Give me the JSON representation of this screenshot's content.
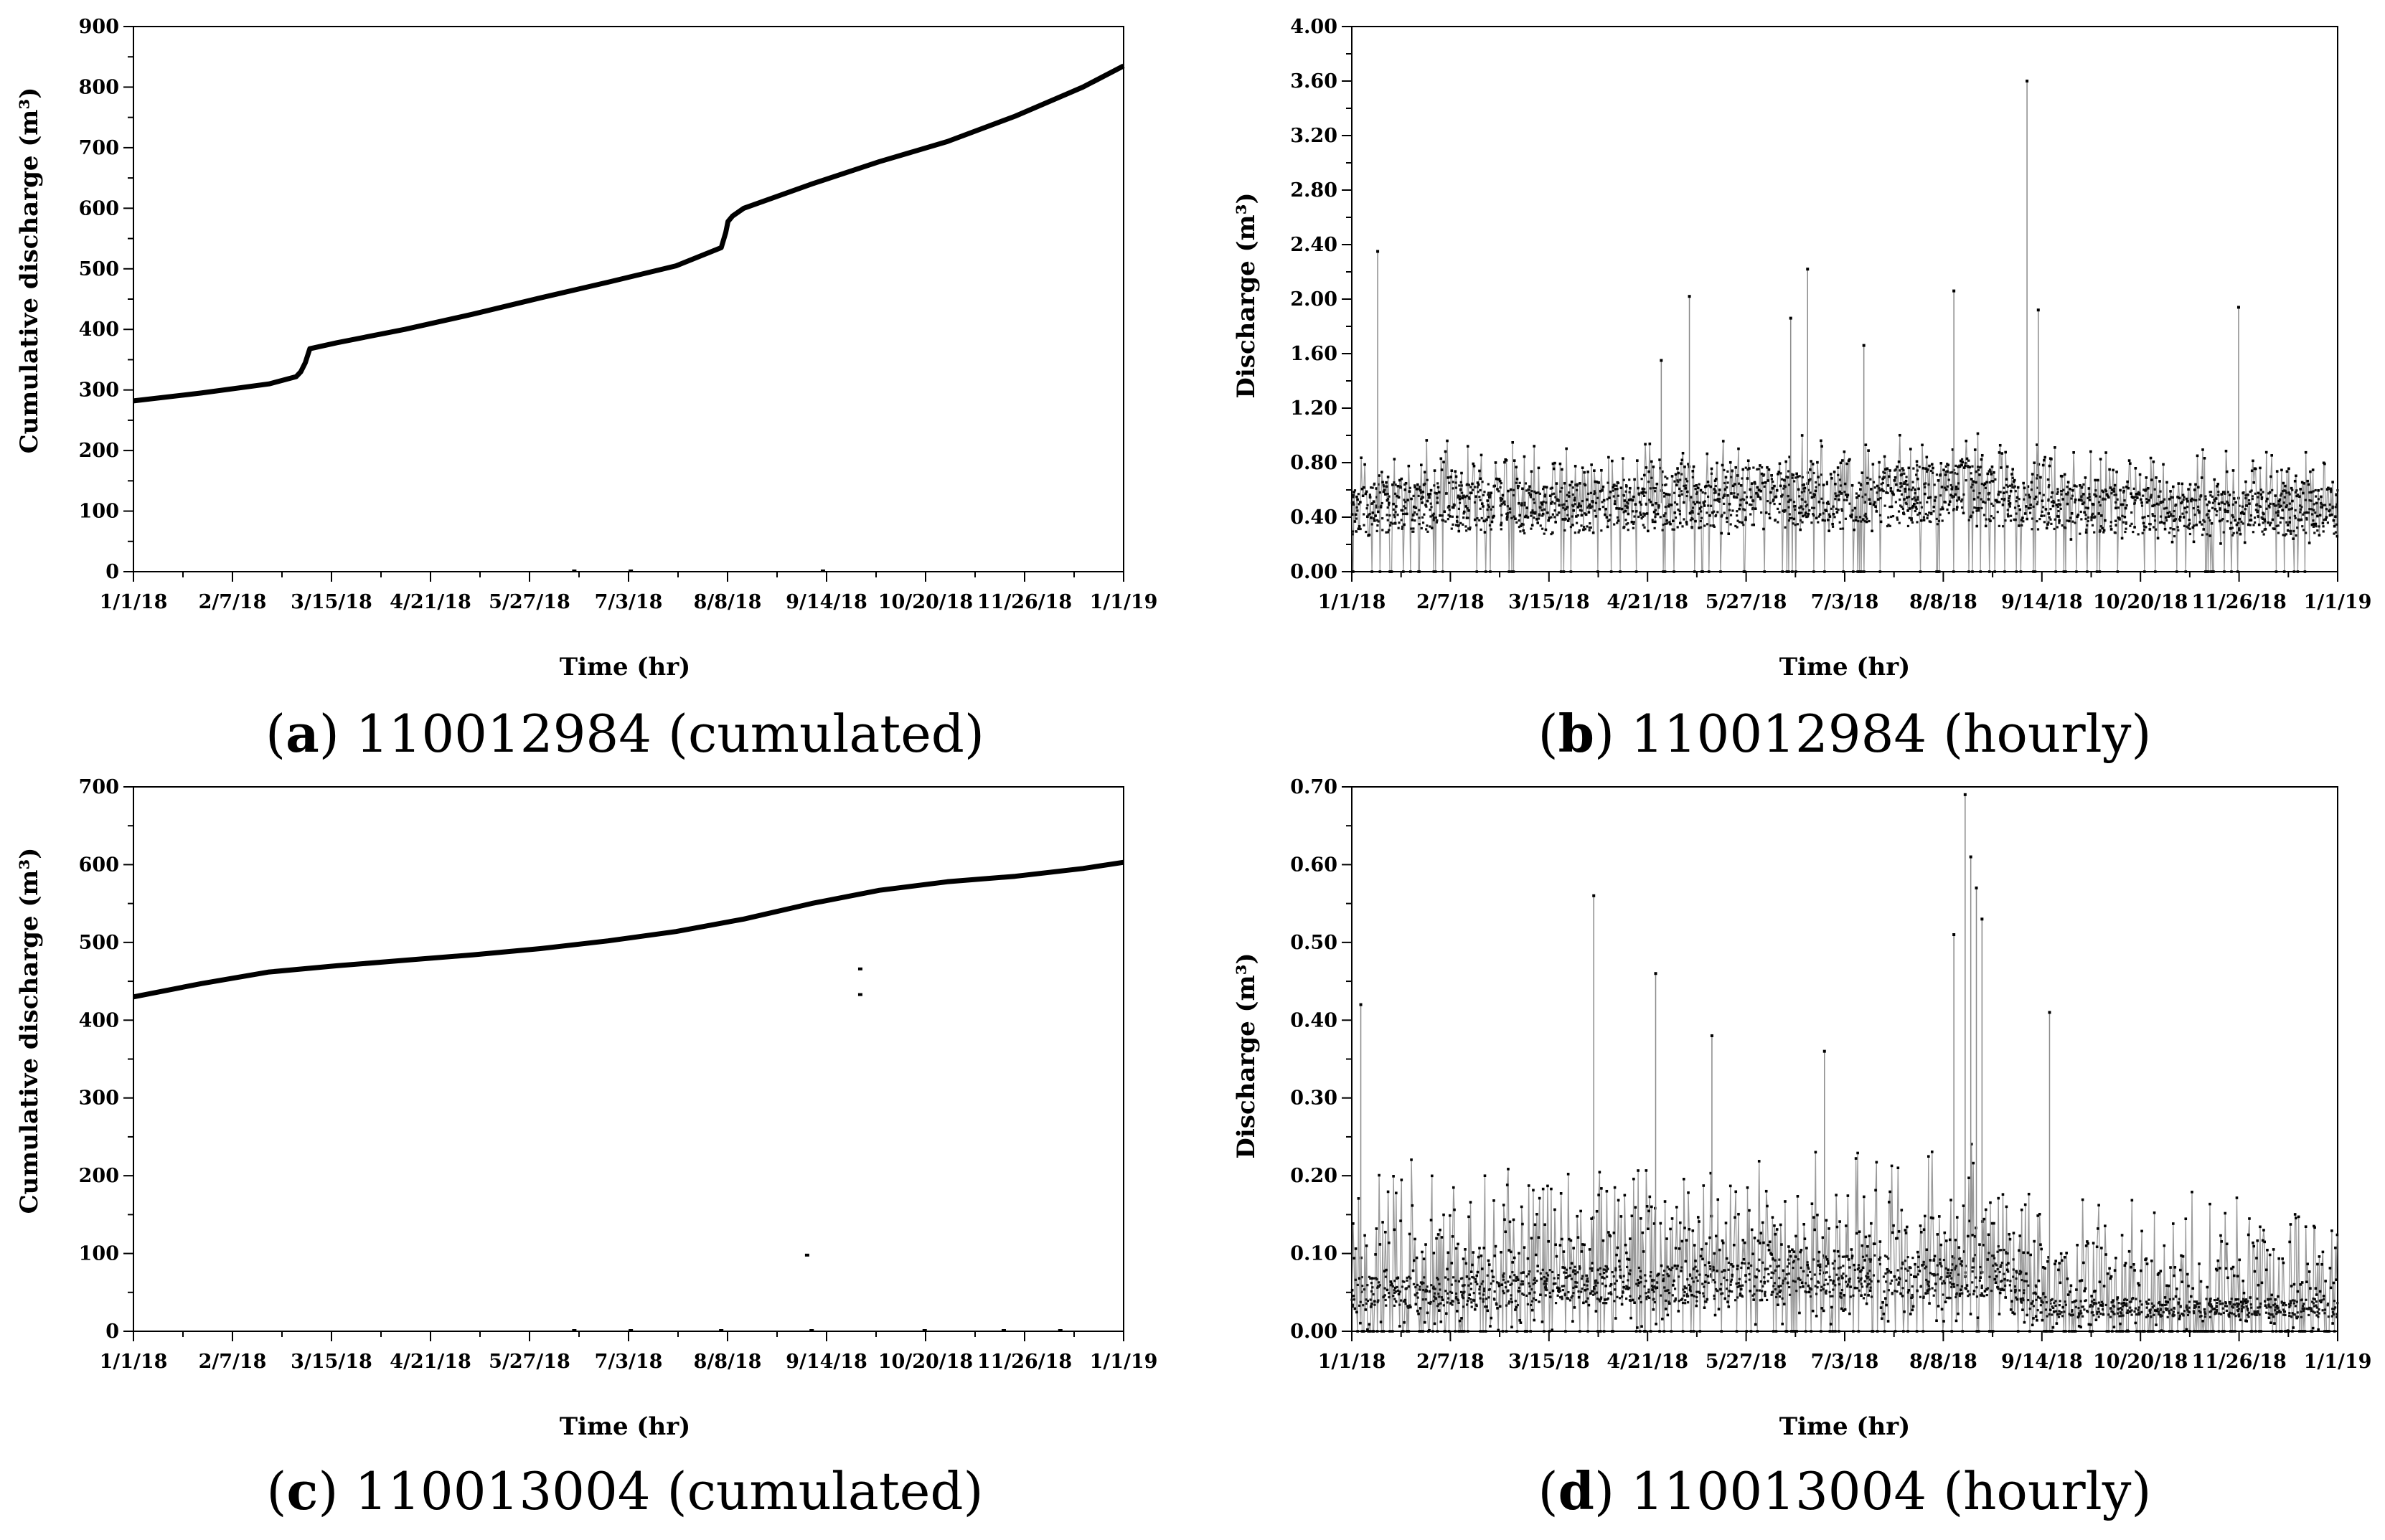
{
  "chart_data": [
    {
      "id": "a",
      "type": "scatter",
      "caption_letter": "a",
      "caption_text": "110012984 (cumulated)",
      "xlabel": "Time (hr)",
      "ylabel": "Cumulative discharge (m³)",
      "x_tick_labels": [
        "1/1/18",
        "2/7/18",
        "3/15/18",
        "4/21/18",
        "5/27/18",
        "7/3/18",
        "8/8/18",
        "9/14/18",
        "10/20/18",
        "11/26/18",
        "1/1/19"
      ],
      "xlim": [
        0,
        8760
      ],
      "ylim": [
        0,
        900
      ],
      "y_ticks": [
        0,
        100,
        200,
        300,
        400,
        500,
        600,
        700,
        800,
        900
      ],
      "y_tick_labels": [
        "0",
        "100",
        "200",
        "300",
        "400",
        "500",
        "600",
        "700",
        "800",
        "900"
      ],
      "series": [
        {
          "name": "cumulative",
          "x": [
            0,
            600,
            1200,
            1440,
            1480,
            1520,
            1560,
            1800,
            2400,
            3000,
            3600,
            4200,
            4800,
            5200,
            5240,
            5260,
            5300,
            5400,
            6000,
            6600,
            7200,
            7800,
            8400,
            8760
          ],
          "y": [
            282,
            295,
            310,
            322,
            330,
            345,
            368,
            378,
            400,
            425,
            452,
            478,
            505,
            535,
            560,
            578,
            587,
            600,
            640,
            677,
            710,
            752,
            800,
            835
          ]
        }
      ],
      "outliers": {
        "x": [
          3900,
          4400,
          6100
        ],
        "y": [
          0,
          0,
          0
        ]
      }
    },
    {
      "id": "b",
      "type": "line",
      "caption_letter": "b",
      "caption_text": "110012984 (hourly)",
      "xlabel": "Time (hr)",
      "ylabel": "Discharge (m³)",
      "x_tick_labels": [
        "1/1/18",
        "2/7/18",
        "3/15/18",
        "4/21/18",
        "5/27/18",
        "7/3/18",
        "8/8/18",
        "9/14/18",
        "10/20/18",
        "11/26/18",
        "1/1/19"
      ],
      "xlim": [
        0,
        8760
      ],
      "ylim": [
        0,
        4.0
      ],
      "y_ticks": [
        0,
        0.4,
        0.8,
        1.2,
        1.6,
        2.0,
        2.4,
        2.8,
        3.2,
        3.6,
        4.0
      ],
      "y_tick_labels": [
        "0.00",
        "0.40",
        "0.80",
        "1.20",
        "1.60",
        "2.00",
        "2.40",
        "2.80",
        "3.20",
        "3.60",
        "4.00"
      ],
      "seed": 11,
      "n_samples": 1100,
      "base_x": [
        0,
        900,
        1800,
        2700,
        3600,
        4500,
        5400,
        6000,
        6600,
        7500,
        8760
      ],
      "base_y": [
        0.45,
        0.5,
        0.45,
        0.5,
        0.55,
        0.5,
        0.6,
        0.5,
        0.45,
        0.42,
        0.45
      ],
      "spread": 0.55,
      "spikes": {
        "x": [
          230,
          3000,
          4050,
          4550,
          6000,
          5350,
          6100,
          7880,
          3900,
          2750
        ],
        "y": [
          2.35,
          2.02,
          2.22,
          1.66,
          3.6,
          2.06,
          1.92,
          1.94,
          1.86,
          1.55
        ]
      }
    },
    {
      "id": "c",
      "type": "scatter",
      "caption_letter": "c",
      "caption_text": "110013004 (cumulated)",
      "xlabel": "Time (hr)",
      "ylabel": "Cumulative discharge (m³)",
      "x_tick_labels": [
        "1/1/18",
        "2/7/18",
        "3/15/18",
        "4/21/18",
        "5/27/18",
        "7/3/18",
        "8/8/18",
        "9/14/18",
        "10/20/18",
        "11/26/18",
        "1/1/19"
      ],
      "xlim": [
        0,
        8760
      ],
      "ylim": [
        0,
        700
      ],
      "y_ticks": [
        0,
        100,
        200,
        300,
        400,
        500,
        600,
        700
      ],
      "y_tick_labels": [
        "0",
        "100",
        "200",
        "300",
        "400",
        "500",
        "600",
        "700"
      ],
      "series": [
        {
          "name": "cumulative",
          "x": [
            0,
            600,
            1200,
            1800,
            2400,
            3000,
            3600,
            4200,
            4800,
            5400,
            6000,
            6600,
            7200,
            7800,
            8400,
            8760
          ],
          "y": [
            430,
            447,
            462,
            470,
            477,
            484,
            492,
            502,
            514,
            530,
            550,
            567,
            578,
            585,
            595,
            603
          ]
        }
      ],
      "outliers": {
        "x": [
          5960,
          6430,
          6430,
          3900,
          4400,
          5200,
          6000,
          7000,
          7700,
          8200
        ],
        "y": [
          97,
          465,
          432,
          0,
          0,
          0,
          0,
          0,
          0,
          0
        ]
      }
    },
    {
      "id": "d",
      "type": "line",
      "caption_letter": "d",
      "caption_text": "110013004 (hourly)",
      "xlabel": "Time (hr)",
      "ylabel": "Discharge (m³)",
      "x_tick_labels": [
        "1/1/18",
        "2/7/18",
        "3/15/18",
        "4/21/18",
        "5/27/18",
        "7/3/18",
        "8/8/18",
        "9/14/18",
        "10/20/18",
        "11/26/18",
        "1/1/19"
      ],
      "xlim": [
        0,
        8760
      ],
      "ylim": [
        0,
        0.7
      ],
      "y_ticks": [
        0,
        0.1,
        0.2,
        0.3,
        0.4,
        0.5,
        0.6,
        0.7
      ],
      "y_tick_labels": [
        "0.00",
        "0.10",
        "0.20",
        "0.30",
        "0.40",
        "0.50",
        "0.60",
        "0.70"
      ],
      "seed": 23,
      "n_samples": 1100,
      "base_x": [
        0,
        1000,
        2000,
        3000,
        4000,
        5000,
        5500,
        5800,
        6000,
        6200,
        7000,
        8000,
        8760
      ],
      "base_y": [
        0.05,
        0.05,
        0.06,
        0.06,
        0.07,
        0.07,
        0.07,
        0.08,
        0.05,
        0.03,
        0.03,
        0.03,
        0.03
      ],
      "spread": 0.2,
      "spikes": {
        "x": [
          80,
          2150,
          2700,
          3200,
          5450,
          5500,
          5550,
          5600,
          5350,
          6200,
          4200
        ],
        "y": [
          0.42,
          0.56,
          0.46,
          0.38,
          0.69,
          0.61,
          0.57,
          0.53,
          0.51,
          0.41,
          0.36
        ]
      }
    }
  ]
}
